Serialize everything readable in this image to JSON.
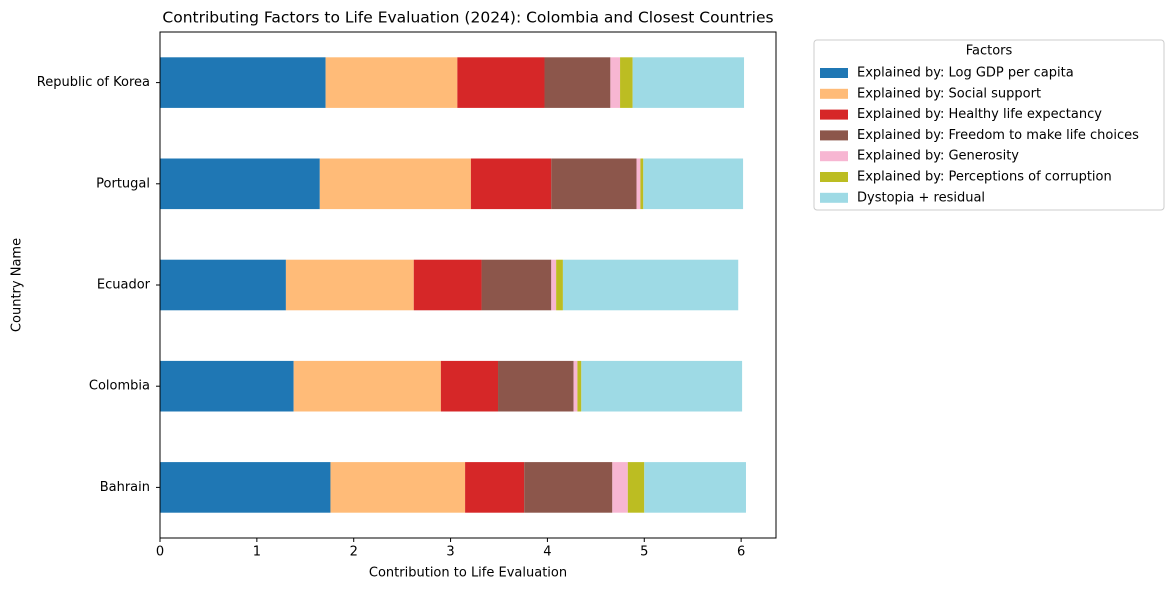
{
  "chart_data": {
    "type": "stacked-barh",
    "title": "Contributing Factors to Life Evaluation (2024): Colombia and Closest Countries",
    "xlabel": "Contribution to Life Evaluation",
    "ylabel": "Country Name",
    "legend_title": "Factors",
    "categories": [
      "Bahrain",
      "Colombia",
      "Ecuador",
      "Portugal",
      "Republic of Korea"
    ],
    "series": [
      {
        "name": "Explained by: Log GDP per capita",
        "color": "#1f77b4",
        "values": [
          1.76,
          1.38,
          1.3,
          1.65,
          1.71
        ]
      },
      {
        "name": "Explained by: Social support",
        "color": "#ffbb78",
        "values": [
          1.39,
          1.52,
          1.32,
          1.56,
          1.36
        ]
      },
      {
        "name": "Explained by: Healthy life expectancy",
        "color": "#d62728",
        "values": [
          0.61,
          0.59,
          0.7,
          0.83,
          0.9
        ]
      },
      {
        "name": "Explained by: Freedom to make life choices",
        "color": "#8c564b",
        "values": [
          0.91,
          0.78,
          0.72,
          0.88,
          0.68
        ]
      },
      {
        "name": "Explained by: Generosity",
        "color": "#f7b6d2",
        "values": [
          0.16,
          0.04,
          0.05,
          0.04,
          0.1
        ]
      },
      {
        "name": "Explained by: Perceptions of corruption",
        "color": "#bcbd22",
        "values": [
          0.17,
          0.04,
          0.07,
          0.03,
          0.13
        ]
      },
      {
        "name": "Dystopia + residual",
        "color": "#9edae5",
        "values": [
          1.05,
          1.66,
          1.81,
          1.03,
          1.15
        ]
      }
    ],
    "xlim": [
      0,
      6.36
    ],
    "xticks": [
      0,
      1,
      2,
      3,
      4,
      5,
      6
    ]
  }
}
